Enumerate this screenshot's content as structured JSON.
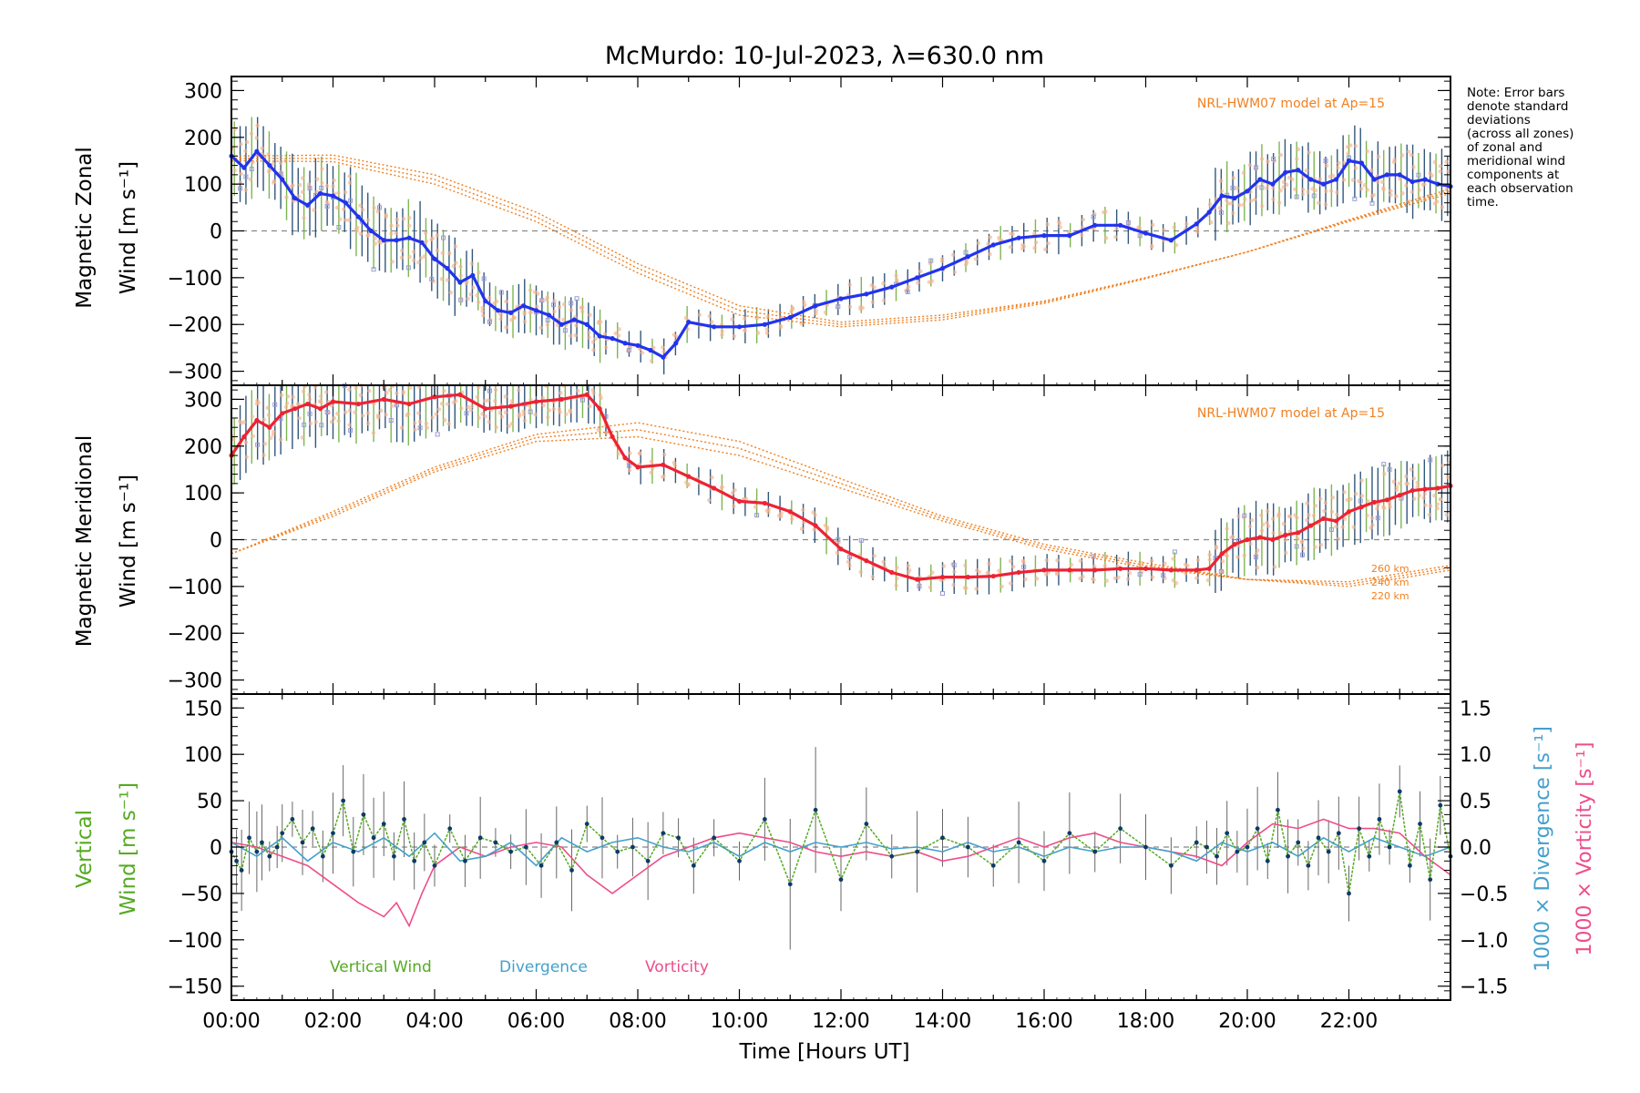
{
  "title": "McMurdo: 10-Jul-2023, λ=630.0 nm",
  "note": [
    "Note: Error bars",
    "denote standard",
    "deviations",
    "(across all zones)",
    "of zonal and",
    "meridional wind",
    "components at",
    "each observation",
    "time."
  ],
  "colors": {
    "zonal": "#2233ee",
    "meridional": "#ee2233",
    "model": "#f08020",
    "errbar": "#0e3a66",
    "errbar_green": "#66aa33",
    "vertical": "#55aa22",
    "divergence": "#44a0cc",
    "vorticity": "#ee4d8a",
    "scatter": "#9a9ad8",
    "scatter_peach": "#f5b48c",
    "zero": "#888888"
  },
  "chart_data": [
    {
      "id": "zonal",
      "type": "line",
      "ylabel_line1": "Magnetic Zonal",
      "ylabel_line2": "Wind [m s⁻¹]",
      "ylim": [
        -330,
        330
      ],
      "yticks": [
        -300,
        -200,
        -100,
        0,
        100,
        200,
        300
      ],
      "xlim": [
        0,
        24
      ],
      "model_label": "NRL-HWM07 model at Ap=15",
      "series": [
        {
          "name": "Magnetic Zonal Wind",
          "x": [
            0.0,
            0.25,
            0.5,
            0.75,
            1.0,
            1.25,
            1.5,
            1.75,
            2.0,
            2.25,
            2.5,
            2.75,
            3.0,
            3.25,
            3.5,
            3.75,
            4.0,
            4.25,
            4.5,
            4.75,
            5.0,
            5.25,
            5.5,
            5.75,
            6.0,
            6.25,
            6.5,
            6.75,
            7.0,
            7.25,
            7.5,
            7.75,
            8.0,
            8.25,
            8.5,
            8.75,
            9.0,
            9.5,
            10.0,
            10.5,
            11.0,
            11.5,
            12.0,
            12.5,
            13.0,
            13.5,
            14.0,
            14.5,
            15.0,
            15.5,
            16.0,
            16.5,
            17.0,
            17.5,
            18.0,
            18.5,
            19.0,
            19.25,
            19.5,
            19.75,
            20.0,
            20.25,
            20.5,
            20.75,
            21.0,
            21.25,
            21.5,
            21.75,
            22.0,
            22.25,
            22.5,
            22.75,
            23.0,
            23.25,
            23.5,
            23.75,
            24.0
          ],
          "y": [
            160,
            135,
            170,
            140,
            110,
            70,
            55,
            80,
            75,
            60,
            30,
            0,
            -20,
            -20,
            -15,
            -25,
            -60,
            -80,
            -110,
            -95,
            -150,
            -170,
            -175,
            -160,
            -170,
            -180,
            -200,
            -190,
            -200,
            -225,
            -230,
            -240,
            -245,
            -255,
            -270,
            -240,
            -195,
            -205,
            -205,
            -200,
            -185,
            -160,
            -145,
            -135,
            -120,
            -100,
            -80,
            -55,
            -30,
            -15,
            -10,
            -10,
            12,
            12,
            -5,
            -20,
            15,
            40,
            75,
            70,
            85,
            110,
            100,
            125,
            130,
            110,
            100,
            110,
            150,
            145,
            110,
            120,
            120,
            105,
            110,
            100,
            95
          ]
        },
        {
          "name": "NRL-HWM07 model 220 km",
          "x": [
            0,
            2,
            4,
            6,
            8,
            10,
            12,
            14,
            16,
            18,
            20,
            22,
            24
          ],
          "y": [
            160,
            162,
            120,
            40,
            -70,
            -160,
            -195,
            -180,
            -150,
            -100,
            -45,
            20,
            80
          ]
        },
        {
          "name": "NRL-HWM07 model 240 km",
          "x": [
            0,
            2,
            4,
            6,
            8,
            10,
            12,
            14,
            16,
            18,
            20,
            22,
            24
          ],
          "y": [
            155,
            155,
            110,
            30,
            -80,
            -170,
            -200,
            -185,
            -152,
            -100,
            -45,
            22,
            85
          ]
        },
        {
          "name": "NRL-HWM07 model 260 km",
          "x": [
            0,
            2,
            4,
            6,
            8,
            10,
            12,
            14,
            16,
            18,
            20,
            22,
            24
          ],
          "y": [
            150,
            148,
            100,
            20,
            -90,
            -180,
            -205,
            -190,
            -155,
            -102,
            -45,
            24,
            90
          ]
        }
      ]
    },
    {
      "id": "meridional",
      "type": "line",
      "ylabel_line1": "Magnetic Meridional",
      "ylabel_line2": "Wind [m s⁻¹]",
      "ylim": [
        -330,
        330
      ],
      "yticks": [
        -300,
        -200,
        -100,
        0,
        100,
        200,
        300
      ],
      "xlim": [
        0,
        24
      ],
      "model_label": "NRL-HWM07 model at Ap=15",
      "altitude_labels": [
        "260 km",
        "240 km",
        "220 km"
      ],
      "series": [
        {
          "name": "Magnetic Meridional Wind",
          "x": [
            0.0,
            0.25,
            0.5,
            0.75,
            1.0,
            1.25,
            1.5,
            1.75,
            2.0,
            2.5,
            3.0,
            3.5,
            4.0,
            4.5,
            5.0,
            5.5,
            6.0,
            6.5,
            7.0,
            7.25,
            7.5,
            7.75,
            8.0,
            8.5,
            9.0,
            9.5,
            10.0,
            10.5,
            11.0,
            11.5,
            12.0,
            12.5,
            13.0,
            13.5,
            14.0,
            14.5,
            15.0,
            15.5,
            16.0,
            16.5,
            17.0,
            17.5,
            18.0,
            18.5,
            19.0,
            19.25,
            19.5,
            19.75,
            20.0,
            20.25,
            20.5,
            20.75,
            21.0,
            21.25,
            21.5,
            21.75,
            22.0,
            22.25,
            22.5,
            22.75,
            23.0,
            23.25,
            23.5,
            23.75,
            24.0
          ],
          "y": [
            180,
            220,
            255,
            240,
            270,
            280,
            290,
            280,
            295,
            290,
            300,
            290,
            305,
            310,
            280,
            285,
            295,
            300,
            310,
            280,
            220,
            175,
            155,
            160,
            135,
            110,
            82,
            78,
            60,
            30,
            -20,
            -45,
            -70,
            -85,
            -80,
            -80,
            -78,
            -70,
            -65,
            -65,
            -65,
            -62,
            -62,
            -65,
            -65,
            -62,
            -30,
            -10,
            0,
            5,
            0,
            10,
            15,
            30,
            45,
            40,
            60,
            70,
            80,
            85,
            95,
            105,
            108,
            110,
            115
          ]
        },
        {
          "name": "NRL-HWM07 model 220 km",
          "x": [
            0,
            2,
            4,
            6,
            8,
            10,
            12,
            14,
            16,
            18,
            20,
            22,
            24
          ],
          "y": [
            -30,
            50,
            145,
            210,
            220,
            180,
            110,
            40,
            -20,
            -60,
            -85,
            -90,
            -55
          ]
        },
        {
          "name": "NRL-HWM07 model 240 km",
          "x": [
            0,
            2,
            4,
            6,
            8,
            10,
            12,
            14,
            16,
            18,
            20,
            22,
            24
          ],
          "y": [
            -30,
            55,
            150,
            218,
            235,
            195,
            120,
            45,
            -15,
            -55,
            -85,
            -95,
            -60
          ]
        },
        {
          "name": "NRL-HWM07 model 260 km",
          "x": [
            0,
            2,
            4,
            6,
            8,
            10,
            12,
            14,
            16,
            18,
            20,
            22,
            24
          ],
          "y": [
            -30,
            60,
            155,
            225,
            250,
            210,
            130,
            50,
            -10,
            -50,
            -85,
            -100,
            -65
          ]
        }
      ]
    },
    {
      "id": "vertical",
      "type": "line",
      "ylabel_line1": "Vertical",
      "ylabel_line2": "Wind [m s⁻¹]",
      "ylim": [
        -165,
        165
      ],
      "yticks": [
        -150,
        -100,
        -50,
        0,
        50,
        100,
        150
      ],
      "xlim": [
        0,
        24
      ],
      "y2label_divergence": "1000 × Divergence [s⁻¹]",
      "y2label_vorticity": "1000 × Vorticity [s⁻¹]",
      "y2lim": [
        -1.65,
        1.65
      ],
      "y2ticks": [
        -1.5,
        -1.0,
        -0.5,
        0.0,
        0.5,
        1.0,
        1.5
      ],
      "y2ticklabels": [
        "−1.5",
        "−1.0",
        "−0.5",
        "0.0",
        "0.5",
        "1.0",
        "1.5"
      ],
      "legend": [
        "Vertical Wind",
        "Divergence",
        "Vorticity"
      ],
      "series": [
        {
          "name": "Vertical Wind",
          "x": [
            0.0,
            0.1,
            0.2,
            0.35,
            0.5,
            0.6,
            0.75,
            0.9,
            1.0,
            1.2,
            1.4,
            1.6,
            1.8,
            2.0,
            2.2,
            2.4,
            2.6,
            2.8,
            3.0,
            3.2,
            3.4,
            3.6,
            3.8,
            4.0,
            4.3,
            4.6,
            4.9,
            5.2,
            5.5,
            5.8,
            6.1,
            6.4,
            6.7,
            7.0,
            7.3,
            7.6,
            7.9,
            8.2,
            8.5,
            8.8,
            9.1,
            9.5,
            10.0,
            10.5,
            11.0,
            11.5,
            12.0,
            12.5,
            13.0,
            13.5,
            14.0,
            14.5,
            15.0,
            15.5,
            16.0,
            16.5,
            17.0,
            17.5,
            18.0,
            18.5,
            19.0,
            19.2,
            19.4,
            19.6,
            19.8,
            20.0,
            20.2,
            20.4,
            20.6,
            20.8,
            21.0,
            21.2,
            21.4,
            21.6,
            21.8,
            22.0,
            22.2,
            22.4,
            22.6,
            22.8,
            23.0,
            23.2,
            23.4,
            23.6,
            23.8,
            24.0
          ],
          "y": [
            -5,
            -15,
            -25,
            10,
            -5,
            5,
            -10,
            0,
            15,
            30,
            5,
            20,
            -10,
            15,
            50,
            -5,
            35,
            10,
            25,
            -10,
            30,
            -15,
            5,
            -20,
            20,
            -15,
            10,
            5,
            -5,
            0,
            -20,
            5,
            -25,
            25,
            10,
            -5,
            0,
            -15,
            15,
            10,
            -20,
            10,
            -15,
            30,
            -40,
            40,
            -35,
            25,
            -10,
            -5,
            10,
            0,
            -20,
            5,
            -15,
            15,
            -5,
            20,
            0,
            -20,
            5,
            0,
            -10,
            15,
            -5,
            0,
            20,
            -15,
            40,
            -10,
            5,
            -20,
            10,
            -5,
            15,
            -50,
            20,
            -10,
            30,
            0,
            60,
            -20,
            25,
            -35,
            45,
            -10
          ]
        },
        {
          "name": "Divergence",
          "x": [
            0.0,
            0.5,
            1.0,
            1.5,
            2.0,
            2.5,
            3.0,
            3.5,
            4.0,
            4.5,
            5.0,
            5.5,
            6.0,
            6.5,
            7.0,
            7.5,
            8.0,
            8.5,
            9.0,
            9.5,
            10.0,
            10.5,
            11.0,
            11.5,
            12.0,
            12.5,
            13.0,
            13.5,
            14.0,
            14.5,
            15.0,
            15.5,
            16.0,
            16.5,
            17.0,
            17.5,
            18.0,
            18.5,
            19.0,
            19.5,
            20.0,
            20.5,
            21.0,
            21.5,
            22.0,
            22.5,
            23.0,
            23.5,
            24.0
          ],
          "y": [
            0.05,
            -0.1,
            0.1,
            -0.15,
            0.05,
            -0.05,
            0.1,
            -0.1,
            0.15,
            -0.15,
            -0.1,
            0.05,
            -0.2,
            0.1,
            -0.05,
            0.05,
            0.1,
            0.0,
            -0.05,
            0.05,
            -0.1,
            0.05,
            -0.05,
            0.05,
            0.0,
            0.05,
            -0.02,
            0.0,
            -0.05,
            0.05,
            -0.05,
            0.0,
            -0.1,
            0.0,
            -0.05,
            0.0,
            0.0,
            -0.05,
            -0.15,
            0.05,
            -0.05,
            0.05,
            -0.1,
            0.1,
            -0.05,
            0.1,
            0.0,
            -0.1,
            0.0
          ]
        },
        {
          "name": "Vorticity",
          "x": [
            0.0,
            0.5,
            1.0,
            1.5,
            2.0,
            2.5,
            3.0,
            3.25,
            3.5,
            3.75,
            4.0,
            4.25,
            4.5,
            5.0,
            5.5,
            6.0,
            6.5,
            7.0,
            7.5,
            8.0,
            8.5,
            9.0,
            9.5,
            10.0,
            10.5,
            11.0,
            11.5,
            12.0,
            12.5,
            13.0,
            13.5,
            14.0,
            14.5,
            15.0,
            15.5,
            16.0,
            16.5,
            17.0,
            17.5,
            18.0,
            18.5,
            19.0,
            19.5,
            20.0,
            20.5,
            21.0,
            21.5,
            22.0,
            22.5,
            23.0,
            23.5,
            24.0
          ],
          "y": [
            0.05,
            0.0,
            -0.1,
            -0.2,
            -0.4,
            -0.6,
            -0.75,
            -0.6,
            -0.85,
            -0.5,
            -0.2,
            -0.1,
            0.0,
            -0.1,
            0.0,
            0.05,
            0.0,
            -0.3,
            -0.5,
            -0.3,
            -0.1,
            0.0,
            0.1,
            0.15,
            0.1,
            0.05,
            -0.05,
            -0.1,
            -0.05,
            -0.1,
            -0.05,
            -0.15,
            -0.1,
            0.0,
            0.1,
            0.0,
            0.1,
            0.15,
            0.05,
            0.0,
            -0.05,
            -0.1,
            -0.2,
            0.05,
            0.25,
            0.2,
            0.3,
            0.2,
            0.2,
            0.15,
            -0.1,
            -0.3
          ]
        }
      ]
    }
  ],
  "xaxis": {
    "label": "Time [Hours UT]",
    "ticks": [
      0,
      2,
      4,
      6,
      8,
      10,
      12,
      14,
      16,
      18,
      20,
      22
    ],
    "ticklabels": [
      "00:00",
      "02:00",
      "04:00",
      "06:00",
      "08:00",
      "10:00",
      "12:00",
      "14:00",
      "16:00",
      "18:00",
      "20:00",
      "22:00"
    ]
  }
}
